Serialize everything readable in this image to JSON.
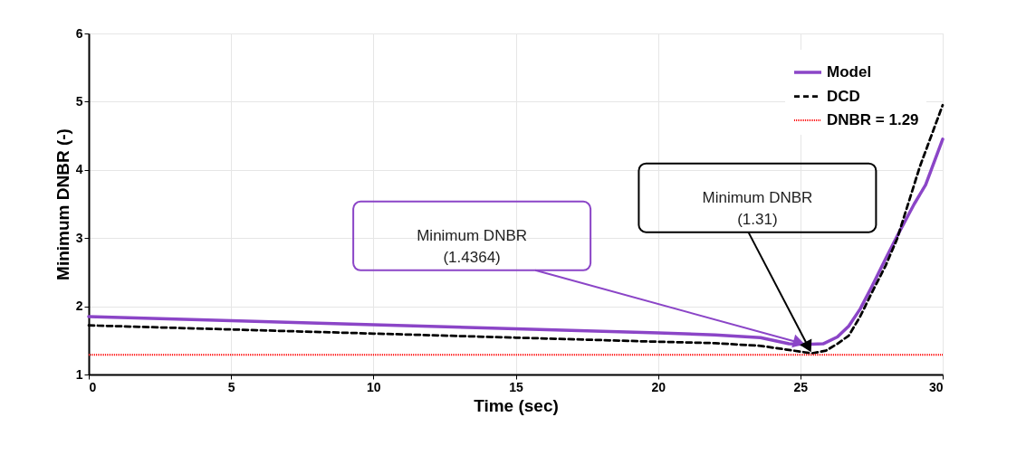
{
  "chart_data": {
    "type": "line",
    "xlabel": "Time (sec)",
    "ylabel": "Minimum DNBR (-)",
    "xlim": [
      0,
      30
    ],
    "xticks": [
      0,
      5,
      10,
      15,
      20,
      25,
      30
    ],
    "ylim": [
      1,
      6
    ],
    "yticks": [
      1,
      2,
      3,
      4,
      5,
      6
    ],
    "grid": true,
    "legend": "top right",
    "marker": "none",
    "series": [
      {
        "name": "Model",
        "color": "#8b45c7",
        "line_style": "solid",
        "x": [
          0,
          5,
          10,
          15,
          20,
          22,
          23.6,
          24.6,
          25.2,
          25.8,
          26.3,
          26.7,
          27.1,
          27.5,
          28,
          28.4,
          29,
          29.4,
          30
        ],
        "values": [
          1.85,
          1.79,
          1.73,
          1.67,
          1.61,
          1.58,
          1.54,
          1.45,
          1.44,
          1.45,
          1.55,
          1.71,
          1.96,
          2.28,
          2.7,
          3.03,
          3.5,
          3.78,
          4.45
        ]
      },
      {
        "name": "DCD",
        "color": "#000000",
        "line_style": "dashed",
        "x": [
          0,
          5,
          10,
          15,
          20,
          22,
          23.6,
          24.6,
          25.4,
          25.9,
          26.3,
          26.7,
          27.1,
          27.5,
          28,
          28.4,
          29.2,
          30
        ],
        "values": [
          1.72,
          1.66,
          1.6,
          1.54,
          1.48,
          1.46,
          1.42,
          1.36,
          1.31,
          1.35,
          1.45,
          1.57,
          1.85,
          2.19,
          2.6,
          2.99,
          4.05,
          4.95
        ]
      }
    ],
    "ref_lines": [
      {
        "axis": "y",
        "value": 1.29,
        "label": "DNBR = 1.29",
        "color": "#ff0000",
        "line_style": "dotted"
      }
    ],
    "annotations": [
      {
        "text": "Minimum DNBR\n(1.4364)",
        "x": 25.2,
        "y": 1.44
      },
      {
        "text": "Minimum DNBR\n(1.31)",
        "x": 25.4,
        "y": 1.31
      }
    ]
  }
}
